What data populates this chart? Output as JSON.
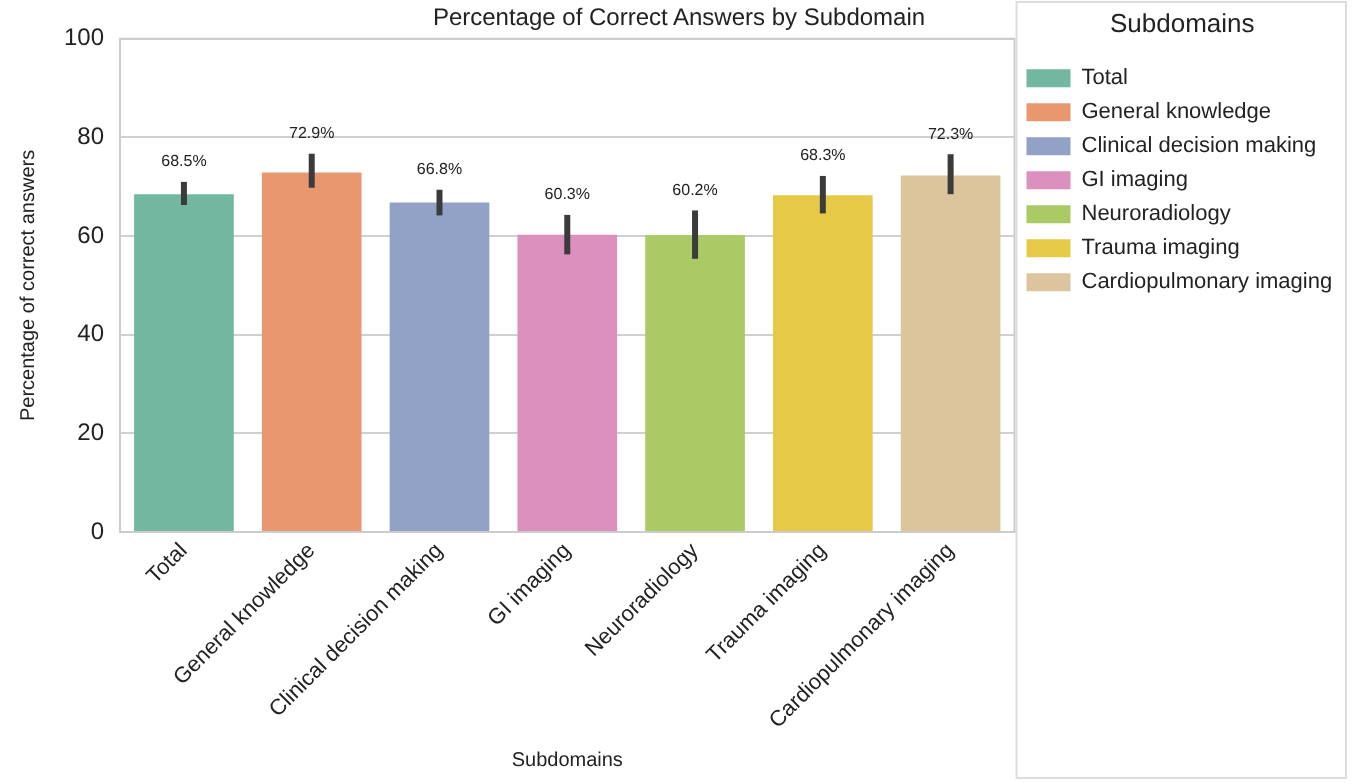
{
  "chart_data": {
    "type": "bar",
    "title": "Percentage of Correct Answers by Subdomain",
    "xlabel": "Subdomains",
    "ylabel": "Percentage of correct answers",
    "legend_title": "Subdomains",
    "categories": [
      "Total",
      "General knowledge",
      "Clinical decision making",
      "GI imaging",
      "Neuroradiology",
      "Trauma imaging",
      "Cardiopulmonary imaging"
    ],
    "series": [
      {
        "name": "Total",
        "color": "#72b8a0",
        "values": [
          68.5,
          null,
          null,
          null,
          null,
          null,
          null
        ],
        "value_labels": [
          "68.5%",
          null,
          null,
          null,
          null,
          null,
          null
        ],
        "errors": [
          [
            66.3,
            71.0
          ],
          null,
          null,
          null,
          null,
          null,
          null
        ]
      },
      {
        "name": "General knowledge",
        "color": "#e9976f",
        "values": [
          null,
          72.9,
          null,
          null,
          null,
          null,
          null
        ],
        "value_labels": [
          null,
          "72.9%",
          null,
          null,
          null,
          null,
          null
        ],
        "errors": [
          null,
          [
            69.8,
            76.7
          ],
          null,
          null,
          null,
          null,
          null
        ]
      },
      {
        "name": "Clinical decision making",
        "color": "#92a2c6",
        "values": [
          null,
          null,
          66.8,
          null,
          null,
          null,
          null
        ],
        "value_labels": [
          null,
          null,
          "66.8%",
          null,
          null,
          null,
          null
        ],
        "errors": [
          null,
          null,
          [
            64.2,
            69.4
          ],
          null,
          null,
          null,
          null
        ]
      },
      {
        "name": "GI imaging",
        "color": "#dc90bd",
        "values": [
          null,
          null,
          null,
          60.3,
          null,
          null,
          null
        ],
        "value_labels": [
          null,
          null,
          null,
          "60.3%",
          null,
          null,
          null
        ],
        "errors": [
          null,
          null,
          null,
          [
            56.3,
            64.3
          ],
          null,
          null,
          null
        ]
      },
      {
        "name": "Neuroradiology",
        "color": "#a9ca65",
        "values": [
          null,
          null,
          null,
          null,
          60.2,
          null,
          null
        ],
        "value_labels": [
          null,
          null,
          null,
          null,
          "60.2%",
          null,
          null
        ],
        "errors": [
          null,
          null,
          null,
          null,
          [
            55.4,
            65.2
          ],
          null,
          null
        ]
      },
      {
        "name": "Trauma imaging",
        "color": "#e6c947",
        "values": [
          null,
          null,
          null,
          null,
          null,
          68.3,
          null
        ],
        "value_labels": [
          null,
          null,
          null,
          null,
          null,
          "68.3%",
          null
        ],
        "errors": [
          null,
          null,
          null,
          null,
          null,
          [
            64.6,
            72.2
          ],
          null
        ]
      },
      {
        "name": "Cardiopulmonary imaging",
        "color": "#dcc49d",
        "values": [
          null,
          null,
          null,
          null,
          null,
          null,
          72.3
        ],
        "value_labels": [
          null,
          null,
          null,
          null,
          null,
          null,
          "72.3%"
        ],
        "errors": [
          null,
          null,
          null,
          null,
          null,
          null,
          [
            68.5,
            76.6
          ]
        ]
      }
    ],
    "ylim": [
      0,
      100
    ],
    "yticks": [
      0,
      20,
      40,
      60,
      80,
      100
    ],
    "grid": "y",
    "legend": "right"
  }
}
